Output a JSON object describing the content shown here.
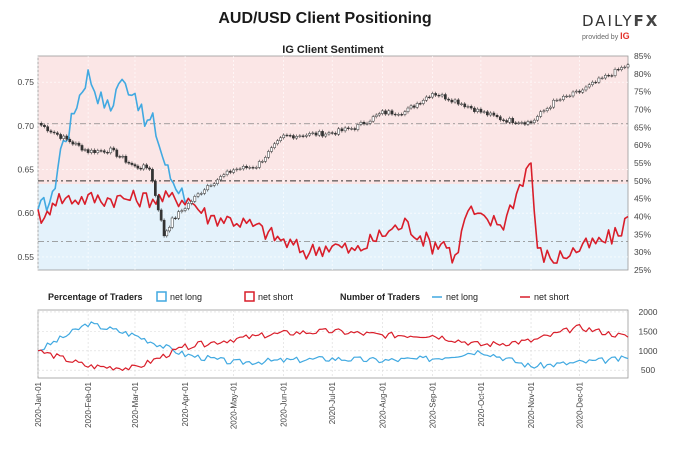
{
  "header": {
    "title": "AUD/USD Client Positioning",
    "logo_text": "DAILY",
    "logo_fx": "FX",
    "logo_provided": "provided by",
    "logo_ig": "IG"
  },
  "chart_data": [
    {
      "type": "line",
      "title": "IG Client Sentiment",
      "y_left_ticks": [
        "0.55",
        "0.60",
        "0.65",
        "0.70",
        "0.75"
      ],
      "y_left_range": [
        0.535,
        0.78
      ],
      "y_right_ticks": [
        "25%",
        "30%",
        "35%",
        "40%",
        "45%",
        "50%",
        "55%",
        "60%",
        "65%",
        "70%",
        "75%",
        "80%",
        "85%"
      ],
      "y_right_range": [
        25,
        85
      ],
      "reference_levels_pct": [
        33,
        50,
        66
      ],
      "price_series": {
        "name": "AUD/USD",
        "dates": [
          "2020-01-01",
          "2020-01-15",
          "2020-02-01",
          "2020-02-15",
          "2020-03-01",
          "2020-03-10",
          "2020-03-19",
          "2020-03-24",
          "2020-04-01",
          "2020-04-15",
          "2020-05-01",
          "2020-05-15",
          "2020-06-01",
          "2020-06-15",
          "2020-07-01",
          "2020-07-15",
          "2020-08-01",
          "2020-08-15",
          "2020-09-01",
          "2020-09-15",
          "2020-10-01",
          "2020-10-15",
          "2020-11-01",
          "2020-11-15",
          "2020-12-01",
          "2020-12-15",
          "2020-12-31"
        ],
        "values": [
          0.703,
          0.688,
          0.671,
          0.672,
          0.653,
          0.652,
          0.575,
          0.592,
          0.607,
          0.632,
          0.65,
          0.654,
          0.688,
          0.69,
          0.692,
          0.698,
          0.715,
          0.716,
          0.738,
          0.729,
          0.716,
          0.707,
          0.704,
          0.727,
          0.739,
          0.754,
          0.77
        ]
      },
      "sentiment_series": [
        {
          "name": "net long",
          "color": "#41a9e1",
          "dates": [
            "2020-01-01",
            "2020-01-10",
            "2020-01-15",
            "2020-01-20",
            "2020-01-25",
            "2020-02-01",
            "2020-02-07",
            "2020-02-15",
            "2020-02-20",
            "2020-03-01",
            "2020-03-07",
            "2020-03-12",
            "2020-03-18",
            "2020-03-23",
            "2020-03-28",
            "2020-04-03"
          ],
          "values": [
            42,
            45,
            59,
            64,
            72,
            80,
            74,
            70,
            78,
            75,
            66,
            67,
            57,
            51,
            48,
            45
          ]
        },
        {
          "name": "net short",
          "color": "#d91e2a",
          "dates": [
            "2020-01-01",
            "2020-01-05",
            "2020-01-10",
            "2020-04-03",
            "2020-04-15",
            "2020-05-01",
            "2020-05-15",
            "2020-06-01",
            "2020-06-15",
            "2020-07-01",
            "2020-07-15",
            "2020-08-01",
            "2020-08-15",
            "2020-09-01",
            "2020-09-08",
            "2020-09-15",
            "2020-09-23",
            "2020-10-01",
            "2020-10-15",
            "2020-10-31",
            "2020-11-01",
            "2020-11-05",
            "2020-11-15",
            "2020-12-01",
            "2020-12-15",
            "2020-12-25",
            "2020-12-31"
          ],
          "values": [
            42,
            38,
            45,
            45,
            40,
            39,
            37,
            33,
            30,
            32,
            30,
            35,
            38,
            32,
            33,
            28,
            42,
            39,
            38,
            55,
            55,
            30,
            28,
            31,
            33,
            35,
            40
          ]
        }
      ]
    },
    {
      "type": "line",
      "title": "Percentage of Traders",
      "legend": [
        "net long",
        "net short"
      ],
      "series": [
        {
          "name": "net long",
          "color": "#41a9e1",
          "dates": [
            "2020-01-01",
            "2020-02-01",
            "2020-03-01",
            "2020-04-01",
            "2020-05-01",
            "2020-06-01",
            "2020-07-01",
            "2020-08-01",
            "2020-09-01",
            "2020-10-01",
            "2020-11-01",
            "2020-12-01",
            "2020-12-31"
          ],
          "values": [
            1000,
            1700,
            1400,
            900,
            700,
            750,
            800,
            750,
            800,
            1000,
            600,
            700,
            800
          ]
        },
        {
          "name": "net short",
          "color": "#d91e2a",
          "dates": [
            "2020-01-01",
            "2020-02-01",
            "2020-03-01",
            "2020-04-01",
            "2020-05-01",
            "2020-06-01",
            "2020-07-01",
            "2020-08-01",
            "2020-09-01",
            "2020-10-01",
            "2020-11-01",
            "2020-12-01",
            "2020-12-31"
          ],
          "values": [
            1000,
            600,
            550,
            1100,
            1300,
            1450,
            1500,
            1400,
            1400,
            1150,
            1250,
            1600,
            1350
          ]
        }
      ]
    },
    {
      "type": "line",
      "title": "Number of Traders",
      "legend": [
        "net long",
        "net short"
      ],
      "y_ticks": [
        "500",
        "1000",
        "1500",
        "2000"
      ],
      "y_range": [
        300,
        2050
      ],
      "x_ticks": [
        "2020-Jan-01",
        "2020-Feb-01",
        "2020-Mar-01",
        "2020-Apr-01",
        "2020-May-01",
        "2020-Jun-01",
        "2020-Jul-01",
        "2020-Aug-01",
        "2020-Sep-01",
        "2020-Oct-01",
        "2020-Nov-01",
        "2020-Dec-01"
      ]
    }
  ]
}
